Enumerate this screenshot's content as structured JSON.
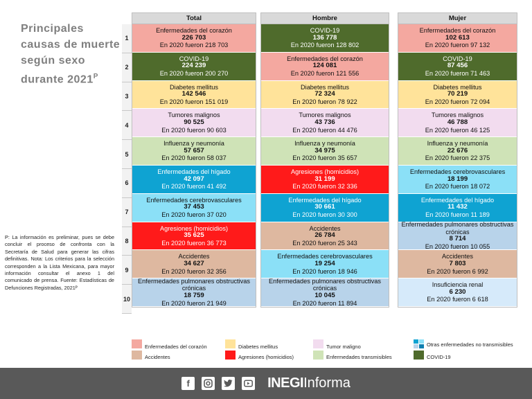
{
  "title": "Principales causas de muerte según sexo durante 2021",
  "title_sup": "P",
  "note": "P: La información es preliminar, pues se debe concluir el proceso de confronta con la Secretaría de Salud para generar las cifras definitivas. Nota: Los criterios para la selección corresponden a la Lista Mexicana, para mayor información consultar el anexo 1 del comunicado de prensa. Fuente: Estadísticas de Defunciones Registradas, 2021ᴾ",
  "ranks": [
    "1",
    "2",
    "3",
    "4",
    "5",
    "6",
    "7",
    "8",
    "9",
    "10"
  ],
  "colors": {
    "corazon": "#f4a8a0",
    "covid": "#4f6b2c",
    "diabetes": "#ffe39a",
    "tumor": "#f2dcef",
    "influenza": "#cfe3b7",
    "higado": "#0fa3d2",
    "agresiones": "#ff1a1a",
    "cerebro": "#8be0f7",
    "accidentes": "#deb8a0",
    "pulmonares": "#b8d3ea",
    "renal": "#d6eafa"
  },
  "columns": [
    {
      "header": "Total",
      "rows": [
        {
          "cause": "Enfermedades del corazón",
          "value": "226 703",
          "prev": "En 2020 fueron 218 703",
          "type": "corazon"
        },
        {
          "cause": "COVID-19",
          "value": "224 239",
          "prev": "En 2020 fueron 200 270",
          "type": "covid"
        },
        {
          "cause": "Diabetes mellitus",
          "value": "142 546",
          "prev": "En 2020 fueron 151 019",
          "type": "diabetes"
        },
        {
          "cause": "Tumores malignos",
          "value": "90 525",
          "prev": "En 2020 fueron 90 603",
          "type": "tumor"
        },
        {
          "cause": "Influenza y neumonía",
          "value": "57 657",
          "prev": "En 2020 fueron 58 037",
          "type": "influenza"
        },
        {
          "cause": "Enfermedades del hígado",
          "value": "42 097",
          "prev": "En 2020 fueron 41 492",
          "type": "higado"
        },
        {
          "cause": "Enfermedades cerebrovasculares",
          "value": "37 453",
          "prev": "En 2020 fueron 37 020",
          "type": "cerebro"
        },
        {
          "cause": "Agresiones (homicidios)",
          "value": "35 625",
          "prev": "En 2020 fueron 36 773",
          "type": "agresiones"
        },
        {
          "cause": "Accidentes",
          "value": "34 627",
          "prev": "En 2020 fueron 32 356",
          "type": "accidentes"
        },
        {
          "cause": "Enfermedades pulmonares obstructivas crónicas",
          "value": "18 759",
          "prev": "En 2020 fueron 21 949",
          "type": "pulmonares"
        }
      ]
    },
    {
      "header": "Hombre",
      "rows": [
        {
          "cause": "COVID-19",
          "value": "136 778",
          "prev": "En 2020 fueron 128 802",
          "type": "covid"
        },
        {
          "cause": "Enfermedades del corazón",
          "value": "124 081",
          "prev": "En 2020 fueron 121 556",
          "type": "corazon"
        },
        {
          "cause": "Diabetes mellitus",
          "value": "72 324",
          "prev": "En 2020 fueron 78 922",
          "type": "diabetes"
        },
        {
          "cause": "Tumores malignos",
          "value": "43 736",
          "prev": "En 2020 fueron 44 476",
          "type": "tumor"
        },
        {
          "cause": "Influenza y neumonía",
          "value": "34 975",
          "prev": "En 2020 fueron 35 657",
          "type": "influenza"
        },
        {
          "cause": "Agresiones (homicidios)",
          "value": "31 199",
          "prev": "En 2020 fueron 32 336",
          "type": "agresiones"
        },
        {
          "cause": "Enfermedades del hígado",
          "value": "30 661",
          "prev": "En 2020 fueron 30 300",
          "type": "higado"
        },
        {
          "cause": "Accidentes",
          "value": "26 784",
          "prev": "En 2020 fueron 25 343",
          "type": "accidentes"
        },
        {
          "cause": "Enfermedades cerebrovasculares",
          "value": "19 254",
          "prev": "En 2020 fueron 18 946",
          "type": "cerebro"
        },
        {
          "cause": "Enfermedades pulmonares obstructivas crónicas",
          "value": "10 045",
          "prev": "En 2020 fueron 11 894",
          "type": "pulmonares"
        }
      ]
    },
    {
      "header": "Mujer",
      "rows": [
        {
          "cause": "Enfermedades del corazón",
          "value": "102 613",
          "prev": "En 2020 fueron 97 132",
          "type": "corazon"
        },
        {
          "cause": "COVID-19",
          "value": "87 456",
          "prev": "En 2020 fueron 71 463",
          "type": "covid"
        },
        {
          "cause": "Diabetes mellitus",
          "value": "70 219",
          "prev": "En 2020 fueron 72 094",
          "type": "diabetes"
        },
        {
          "cause": "Tumores malignos",
          "value": "46 788",
          "prev": "En 2020 fueron 46 125",
          "type": "tumor"
        },
        {
          "cause": "Influenza y neumonía",
          "value": "22 676",
          "prev": "En 2020 fueron 22 375",
          "type": "influenza"
        },
        {
          "cause": "Enfermedades cerebrovasculares",
          "value": "18 199",
          "prev": "En 2020 fueron 18 072",
          "type": "cerebro"
        },
        {
          "cause": "Enfermedades del hígado",
          "value": "11 432",
          "prev": "En 2020 fueron 11 189",
          "type": "higado"
        },
        {
          "cause": "Enfermedades pulmonares obstructivas crónicas",
          "value": "8 714",
          "prev": "En 2020 fueron 10 055",
          "type": "pulmonares"
        },
        {
          "cause": "Accidentes",
          "value": "7 803",
          "prev": "En 2020 fueron 6 992",
          "type": "accidentes"
        },
        {
          "cause": "Insuficiencia renal",
          "value": "6 230",
          "prev": "En 2020 fueron 6 618",
          "type": "renal"
        }
      ]
    }
  ],
  "legend": {
    "corazon": "Enfermedades del corazón",
    "accidentes": "Accidentes",
    "diabetes": "Diabetes mellitus",
    "agresiones": "Agresiones (homicidios)",
    "tumor": "Tumor maligno",
    "transmisibles": "Enfermedades transmisibles",
    "no_transmisibles": "Otras enfermedades no transmisibles",
    "covid": "COVID-19"
  },
  "footer": {
    "brand_bold": "INEGI",
    "brand_light": "Informa",
    "icons": [
      "facebook-icon",
      "instagram-icon",
      "twitter-icon",
      "youtube-icon"
    ]
  }
}
